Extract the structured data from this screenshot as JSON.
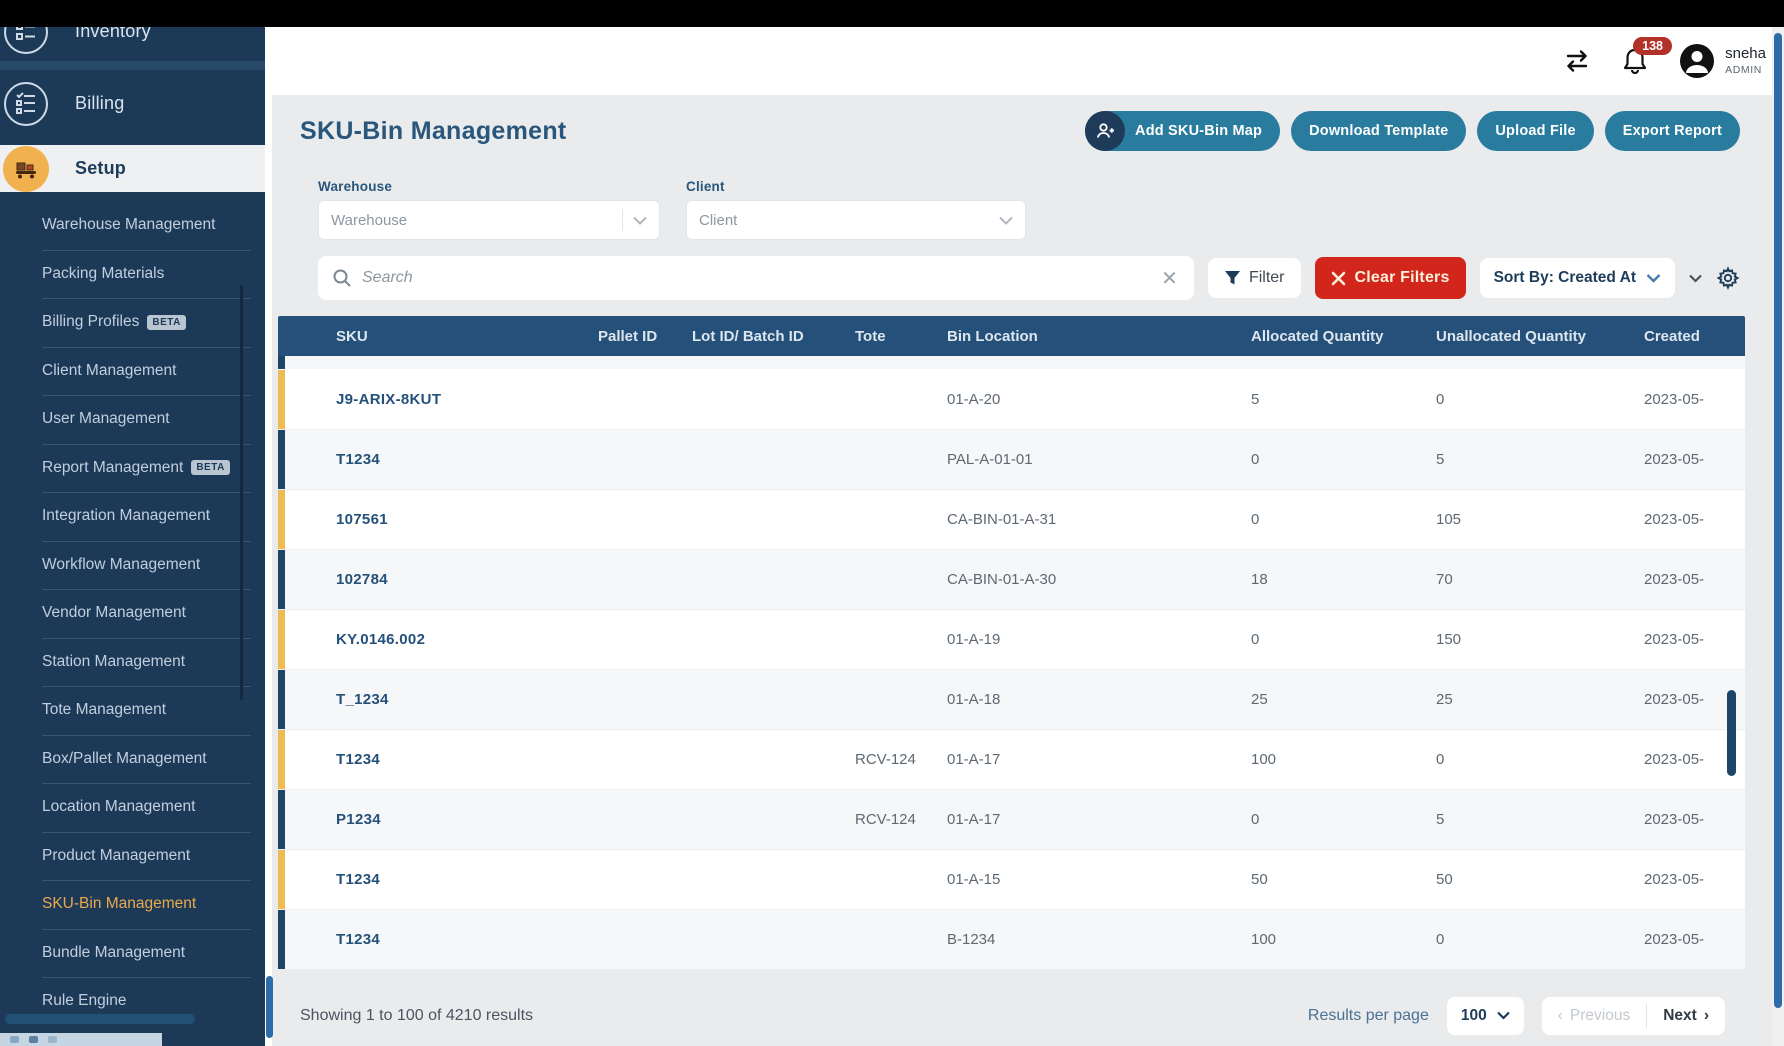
{
  "sidebar": {
    "items": [
      {
        "label": "Inventory"
      },
      {
        "label": "Billing"
      },
      {
        "label": "Setup"
      }
    ],
    "subitems": [
      {
        "label": "Warehouse Management"
      },
      {
        "label": "Packing Materials"
      },
      {
        "label": "Billing Profiles",
        "badge": "BETA"
      },
      {
        "label": "Client Management"
      },
      {
        "label": "User Management"
      },
      {
        "label": "Report Management",
        "badge": "BETA"
      },
      {
        "label": "Integration Management"
      },
      {
        "label": "Workflow Management"
      },
      {
        "label": "Vendor Management"
      },
      {
        "label": "Station Management"
      },
      {
        "label": "Tote Management"
      },
      {
        "label": "Box/Pallet Management"
      },
      {
        "label": "Location Management"
      },
      {
        "label": "Product Management"
      },
      {
        "label": "SKU-Bin Management",
        "active": true
      },
      {
        "label": "Bundle Management"
      },
      {
        "label": "Rule Engine"
      }
    ]
  },
  "header": {
    "notification_count": "138",
    "user_name": "sneha",
    "user_role": "ADMIN"
  },
  "page": {
    "title": "SKU-Bin Management",
    "actions": [
      {
        "label": "Add SKU-Bin Map",
        "icon": "user-add-icon"
      },
      {
        "label": "Download Template"
      },
      {
        "label": "Upload File"
      },
      {
        "label": "Export Report"
      }
    ]
  },
  "filters": {
    "warehouse_label": "Warehouse",
    "warehouse_placeholder": "Warehouse",
    "client_label": "Client",
    "client_placeholder": "Client",
    "search_placeholder": "Search",
    "filter_button": "Filter",
    "clear_filters_button": "Clear Filters",
    "sort_by": "Sort By: Created At"
  },
  "table": {
    "columns": [
      {
        "key": "sku",
        "label": "SKU"
      },
      {
        "key": "pallet",
        "label": "Pallet ID"
      },
      {
        "key": "lot",
        "label": "Lot ID/ Batch ID"
      },
      {
        "key": "tote",
        "label": "Tote"
      },
      {
        "key": "bin",
        "label": "Bin Location"
      },
      {
        "key": "allocated",
        "label": "Allocated Quantity"
      },
      {
        "key": "unallocated",
        "label": "Unallocated Quantity"
      },
      {
        "key": "created",
        "label": "Created"
      }
    ],
    "rows": [
      {
        "accent": "gold",
        "sku": "J9-ARIX-8KUT",
        "pallet": "",
        "lot": "",
        "tote": "",
        "bin": "01-A-20",
        "allocated": "5",
        "unallocated": "0",
        "created": "2023-05-"
      },
      {
        "accent": "navy",
        "sku": "T1234",
        "pallet": "",
        "lot": "",
        "tote": "",
        "bin": "PAL-A-01-01",
        "allocated": "0",
        "unallocated": "5",
        "created": "2023-05-"
      },
      {
        "accent": "gold",
        "sku": "107561",
        "pallet": "",
        "lot": "",
        "tote": "",
        "bin": "CA-BIN-01-A-31",
        "allocated": "0",
        "unallocated": "105",
        "created": "2023-05-"
      },
      {
        "accent": "navy",
        "sku": "102784",
        "pallet": "",
        "lot": "",
        "tote": "",
        "bin": "CA-BIN-01-A-30",
        "allocated": "18",
        "unallocated": "70",
        "created": "2023-05-"
      },
      {
        "accent": "gold",
        "sku": "KY.0146.002",
        "pallet": "",
        "lot": "",
        "tote": "",
        "bin": "01-A-19",
        "allocated": "0",
        "unallocated": "150",
        "created": "2023-05-"
      },
      {
        "accent": "navy",
        "sku": "T_1234",
        "pallet": "",
        "lot": "",
        "tote": "",
        "bin": "01-A-18",
        "allocated": "25",
        "unallocated": "25",
        "created": "2023-05-"
      },
      {
        "accent": "gold",
        "sku": "T1234",
        "pallet": "",
        "lot": "",
        "tote": "RCV-124",
        "bin": "01-A-17",
        "allocated": "100",
        "unallocated": "0",
        "created": "2023-05-"
      },
      {
        "accent": "navy",
        "sku": "P1234",
        "pallet": "",
        "lot": "",
        "tote": "RCV-124",
        "bin": "01-A-17",
        "allocated": "0",
        "unallocated": "5",
        "created": "2023-05-"
      },
      {
        "accent": "gold",
        "sku": "T1234",
        "pallet": "",
        "lot": "",
        "tote": "",
        "bin": "01-A-15",
        "allocated": "50",
        "unallocated": "50",
        "created": "2023-05-"
      },
      {
        "accent": "navy",
        "sku": "T1234",
        "pallet": "",
        "lot": "",
        "tote": "",
        "bin": "B-1234",
        "allocated": "100",
        "unallocated": "0",
        "created": "2023-05-"
      }
    ]
  },
  "pagination": {
    "summary": "Showing 1 to 100 of 4210 results",
    "results_per_page_label": "Results per page",
    "page_size": "100",
    "previous": "Previous",
    "next": "Next"
  },
  "colors": {
    "sidebar_bg": "#1c3a57",
    "active_link": "#e9a94c",
    "teal_button": "#2a7c9e",
    "clear_filters_red": "#d2251b",
    "table_header_bg": "#24507a",
    "accent_gold": "#eebb55",
    "accent_navy": "#1d4568",
    "badge_red": "#b23128"
  }
}
